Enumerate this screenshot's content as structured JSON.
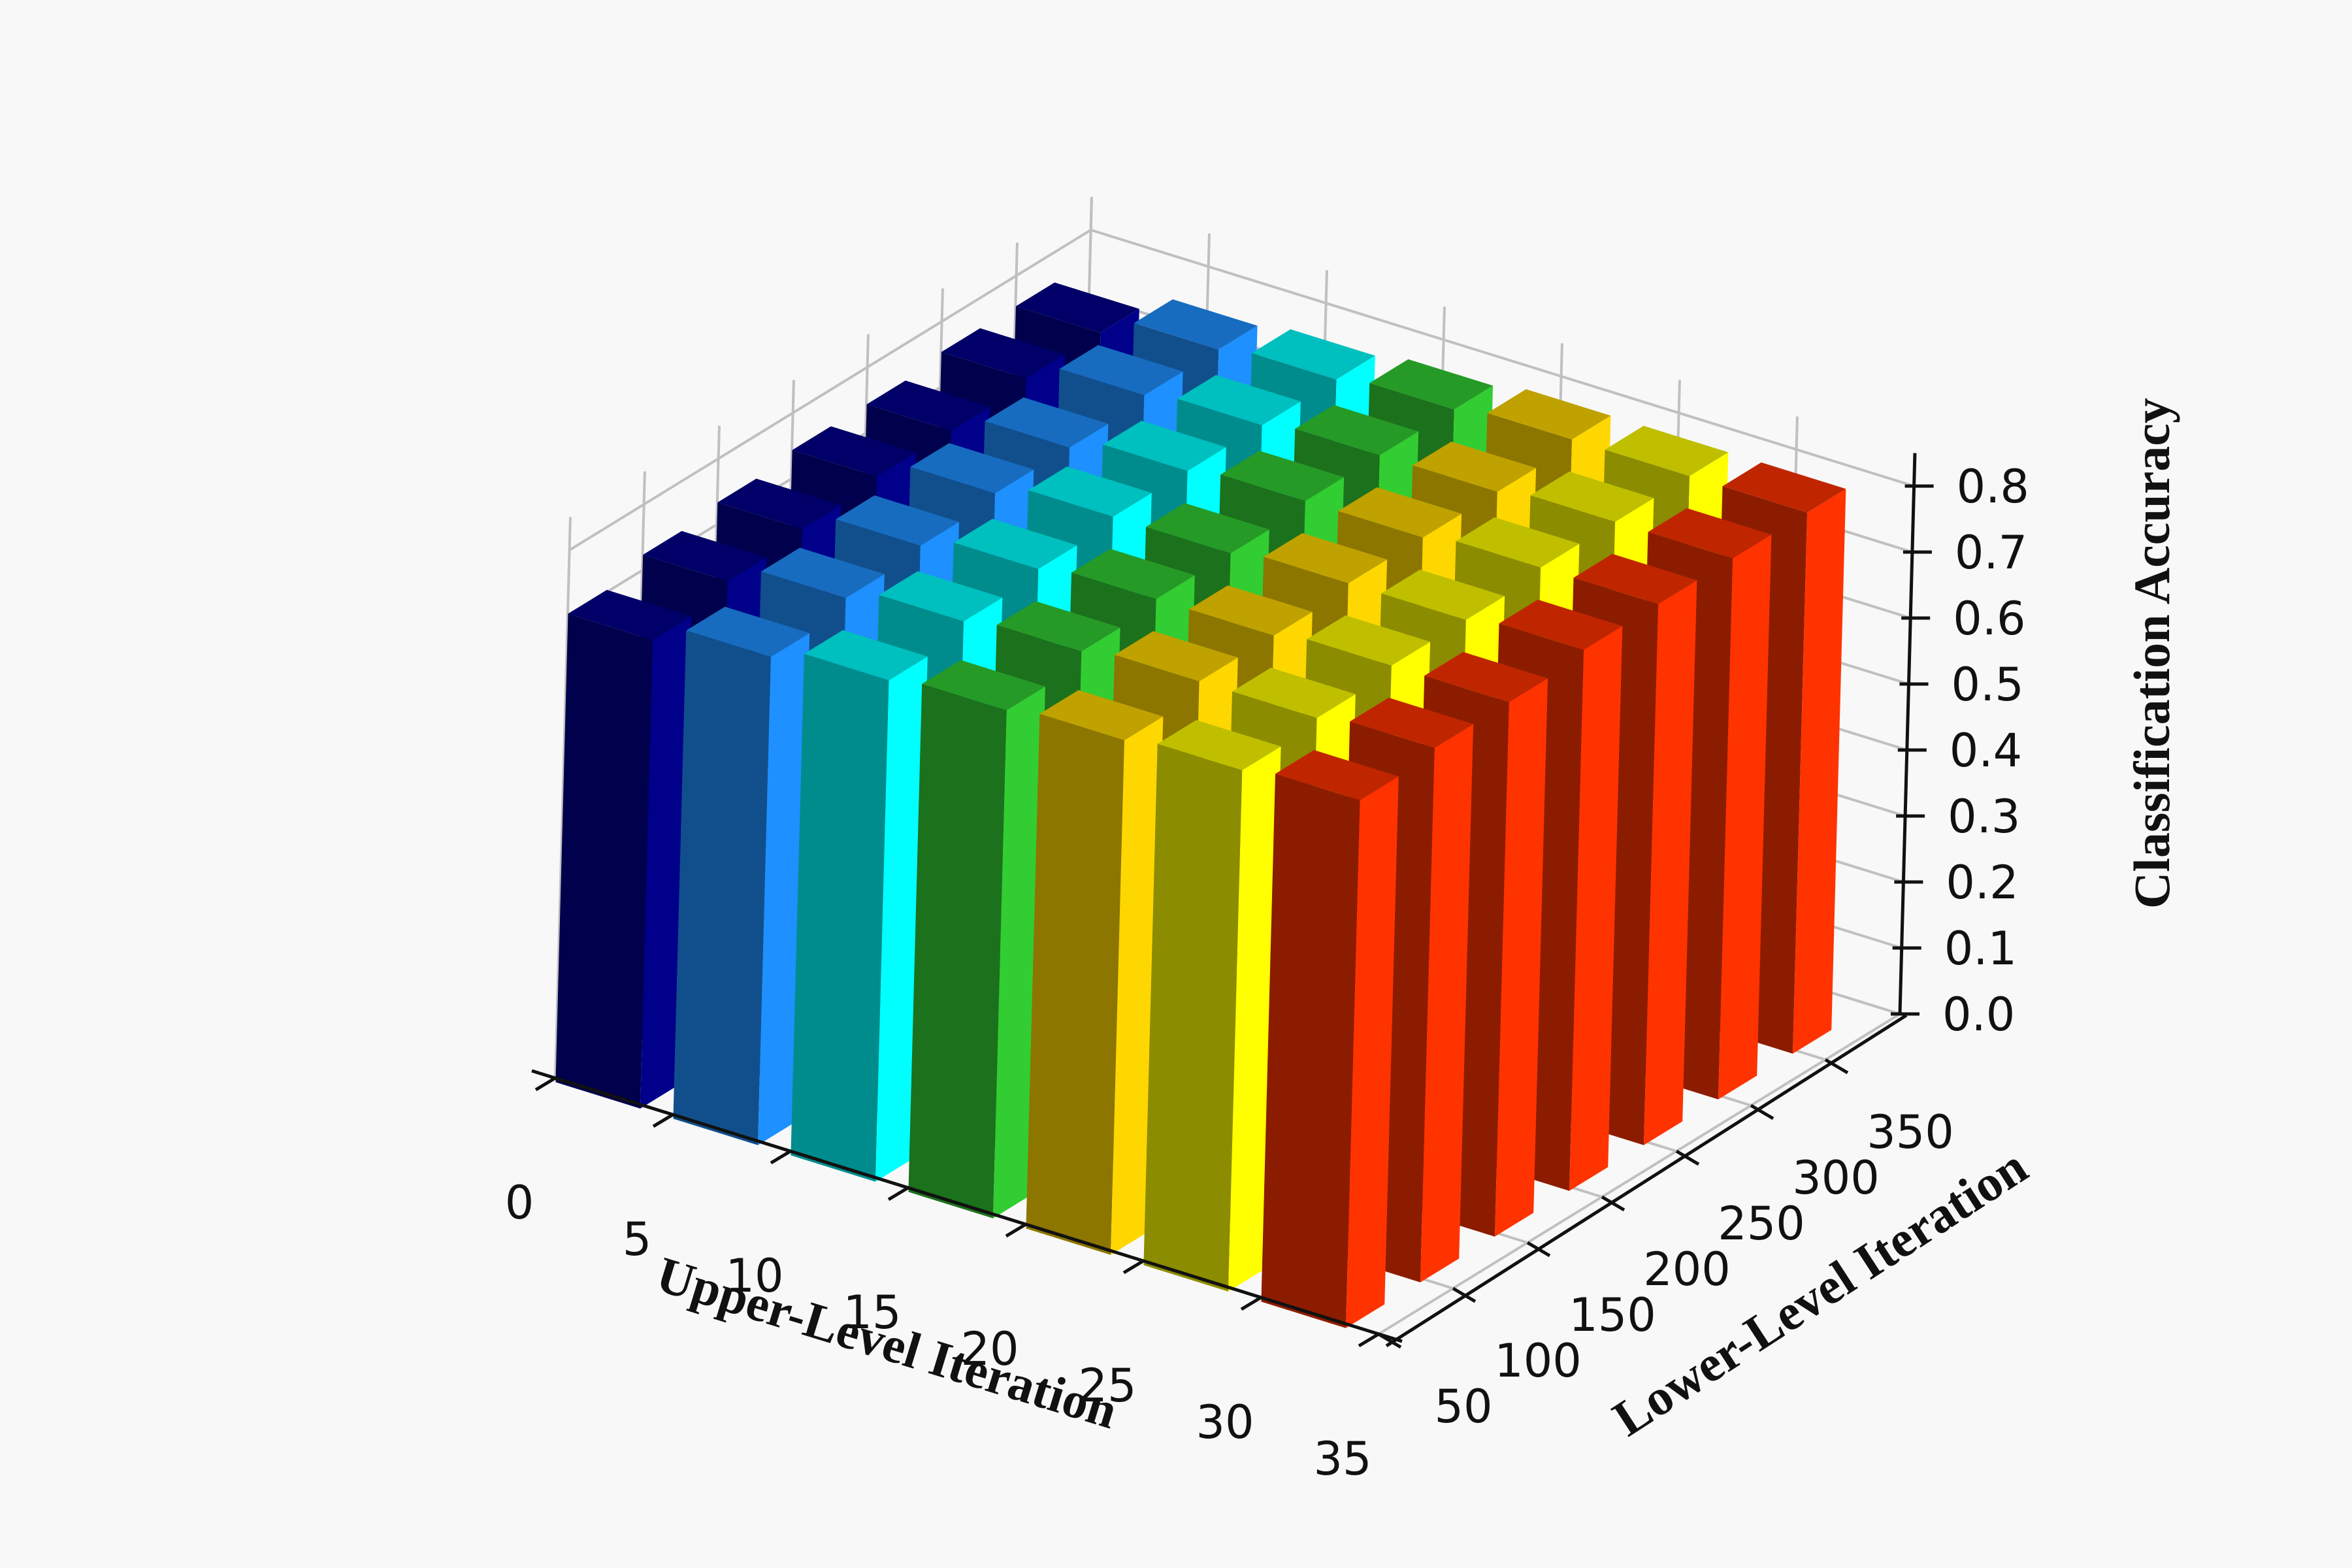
{
  "chart_data": {
    "type": "bar",
    "title": "",
    "xlabel": "Upper-Level Iteration",
    "ylabel": "Lower-Level Iteration",
    "zlabel": "Classification Accuracy",
    "x_ticks": [
      "0",
      "5",
      "10",
      "15",
      "20",
      "25",
      "30",
      "35"
    ],
    "y_ticks": [
      "50",
      "100",
      "150",
      "200",
      "250",
      "300",
      "350"
    ],
    "z_ticks": [
      "0.0",
      "0.1",
      "0.2",
      "0.3",
      "0.4",
      "0.5",
      "0.6",
      "0.7",
      "0.8"
    ],
    "zlim": [
      0,
      0.85
    ],
    "upper_level_iterations": [
      5,
      10,
      15,
      20,
      25,
      30,
      35
    ],
    "lower_level_iterations": [
      50,
      100,
      150,
      200,
      250,
      300,
      350
    ],
    "series_colors": [
      "#00008b",
      "#1e90ff",
      "#00ffff",
      "#32cd32",
      "#ffd700",
      "#ffff00",
      "#ff3300"
    ],
    "values": [
      [
        0.71,
        0.73,
        0.74,
        0.75,
        0.75,
        0.76,
        0.76
      ],
      [
        0.74,
        0.76,
        0.77,
        0.78,
        0.78,
        0.79,
        0.79
      ],
      [
        0.76,
        0.78,
        0.79,
        0.8,
        0.8,
        0.8,
        0.8
      ],
      [
        0.77,
        0.79,
        0.8,
        0.8,
        0.81,
        0.81,
        0.81
      ],
      [
        0.78,
        0.8,
        0.8,
        0.81,
        0.81,
        0.81,
        0.82
      ],
      [
        0.79,
        0.8,
        0.81,
        0.81,
        0.82,
        0.82,
        0.82
      ],
      [
        0.8,
        0.81,
        0.81,
        0.82,
        0.82,
        0.82,
        0.82
      ]
    ]
  }
}
